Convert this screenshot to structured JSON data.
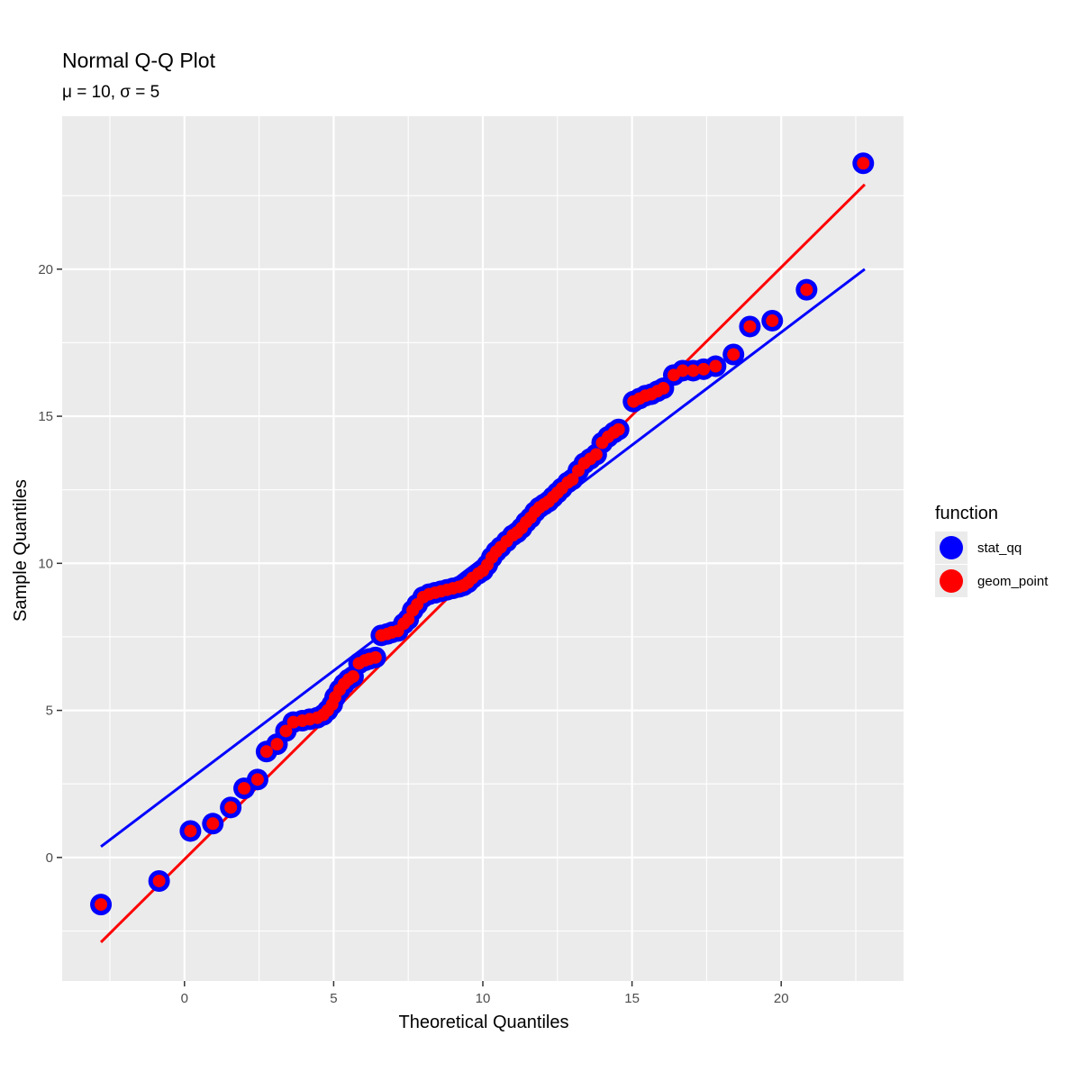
{
  "chart_data": {
    "type": "scatter",
    "title": "Normal Q-Q Plot",
    "subtitle": "μ = 10, σ = 5",
    "xlabel": "Theoretical Quantiles",
    "ylabel": "Sample Quantiles",
    "xlim": [
      -4.1,
      24.1
    ],
    "ylim": [
      -4.2,
      25.2
    ],
    "x_ticks": [
      0,
      5,
      10,
      15,
      20
    ],
    "y_ticks": [
      0,
      5,
      10,
      15,
      20
    ],
    "x_tick_labels": [
      "0",
      "5",
      "10",
      "15",
      "20"
    ],
    "y_tick_labels": [
      "0",
      "5",
      "10",
      "15",
      "20"
    ],
    "grid": true,
    "legend": {
      "title": "function",
      "position": "right",
      "entries": [
        {
          "label": "stat_qq",
          "color": "#0000ff"
        },
        {
          "label": "geom_point",
          "color": "#ff0000"
        }
      ]
    },
    "colors": {
      "stat_qq": "#0000ff",
      "geom_point": "#ff0000",
      "panel_background": "#ebebeb",
      "grid": "#ffffff"
    },
    "lines": [
      {
        "name": "stat_qq",
        "color": "#0000ff",
        "x": [
          -2.8,
          22.8
        ],
        "y": [
          0.37,
          20.0
        ]
      },
      {
        "name": "geom_point",
        "color": "#ff0000",
        "x": [
          -2.8,
          22.8
        ],
        "y": [
          -2.88,
          22.88
        ]
      }
    ],
    "points": {
      "x": [
        -2.8,
        -0.85,
        0.2,
        0.95,
        1.55,
        2.0,
        2.45,
        2.75,
        3.1,
        3.4,
        3.65,
        3.95,
        4.2,
        4.45,
        4.65,
        4.8,
        4.95,
        5.05,
        5.2,
        5.35,
        5.5,
        5.65,
        5.85,
        6.05,
        6.2,
        6.4,
        6.6,
        6.8,
        6.95,
        7.15,
        7.35,
        7.5,
        7.65,
        7.8,
        8.0,
        8.2,
        8.4,
        8.6,
        8.8,
        9.0,
        9.2,
        9.35,
        9.5,
        9.65,
        9.85,
        10.0,
        10.15,
        10.3,
        10.45,
        10.6,
        10.8,
        11.0,
        11.15,
        11.3,
        11.45,
        11.6,
        11.75,
        11.9,
        12.05,
        12.2,
        12.35,
        12.5,
        12.65,
        12.85,
        13.0,
        13.2,
        13.4,
        13.6,
        13.8,
        14.0,
        14.2,
        14.4,
        14.55,
        15.05,
        15.25,
        15.45,
        15.65,
        15.85,
        16.05,
        16.4,
        16.7,
        17.05,
        17.4,
        17.8,
        18.4,
        18.95,
        19.7,
        20.85,
        22.75
      ],
      "y": [
        -1.6,
        -0.8,
        0.9,
        1.15,
        1.7,
        2.35,
        2.65,
        3.6,
        3.85,
        4.3,
        4.6,
        4.65,
        4.7,
        4.75,
        4.85,
        5.0,
        5.2,
        5.45,
        5.7,
        5.9,
        6.05,
        6.15,
        6.6,
        6.7,
        6.75,
        6.8,
        7.55,
        7.6,
        7.65,
        7.7,
        7.95,
        8.1,
        8.4,
        8.6,
        8.85,
        8.95,
        9.0,
        9.05,
        9.1,
        9.15,
        9.2,
        9.25,
        9.35,
        9.5,
        9.65,
        9.75,
        9.95,
        10.2,
        10.4,
        10.55,
        10.75,
        10.95,
        11.05,
        11.2,
        11.4,
        11.55,
        11.75,
        11.9,
        12.0,
        12.1,
        12.25,
        12.4,
        12.55,
        12.75,
        12.85,
        13.15,
        13.4,
        13.55,
        13.7,
        14.1,
        14.3,
        14.45,
        14.55,
        15.5,
        15.6,
        15.7,
        15.75,
        15.85,
        15.95,
        16.4,
        16.55,
        16.55,
        16.6,
        16.7,
        17.1,
        18.05,
        18.25,
        19.3,
        23.6
      ]
    }
  }
}
